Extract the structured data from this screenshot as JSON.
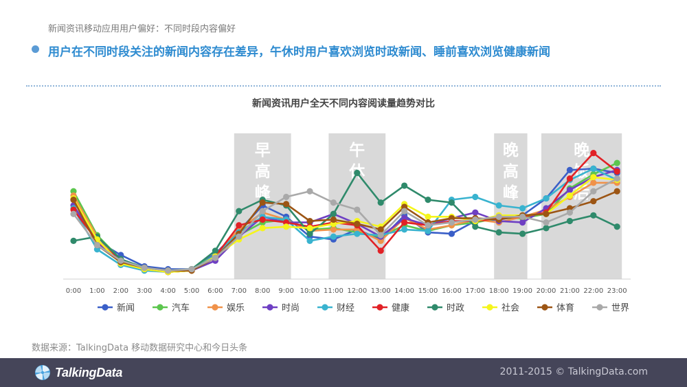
{
  "header": {
    "subtitle": "新闻资讯移动应用用户偏好：不同时段内容偏好",
    "headline": "用户在不同时段关注的新闻内容存在差异，午休时用户喜欢浏览时政新闻、睡前喜欢浏览健康新闻"
  },
  "source": "数据来源：TalkingData 移动数据研究中心和今日头条",
  "footer": {
    "logo_text": "TalkingData",
    "copyright": "2011-2015 © TalkingData.com"
  },
  "colors": {
    "accent": "#2e8bd0",
    "band": "#d9d9d9",
    "footer_bg": "#454559"
  },
  "chart_data": {
    "type": "line",
    "title": "新闻资讯用户全天不同内容阅读量趋势对比",
    "xlabel": "",
    "ylabel": "",
    "ylim": [
      0,
      100
    ],
    "grid": false,
    "legend": "bottom",
    "categories": [
      "0:00",
      "1:00",
      "2:00",
      "3:00",
      "4:00",
      "5:00",
      "6:00",
      "7:00",
      "8:00",
      "9:00",
      "10:00",
      "11:00",
      "12:00",
      "13:00",
      "14:00",
      "15:00",
      "16:00",
      "17:00",
      "18:00",
      "19:00",
      "20:00",
      "21:00",
      "22:00",
      "23:00"
    ],
    "bands": [
      {
        "label": "早高峰",
        "from": 7,
        "to": 9
      },
      {
        "label": "午休",
        "from": 11,
        "to": 13
      },
      {
        "label": "晚高峰",
        "from": 18,
        "to": 19
      },
      {
        "label": "晚饭后",
        "from": 20,
        "to": 23
      }
    ],
    "series": [
      {
        "name": "新闻",
        "color": "#3a5fc8",
        "values": [
          56,
          27,
          17,
          9,
          7,
          7,
          18,
          34,
          52,
          44,
          30,
          28,
          35,
          28,
          45,
          33,
          32,
          41,
          42,
          45,
          57,
          77,
          78,
          75
        ]
      },
      {
        "name": "汽车",
        "color": "#5cc64e",
        "values": [
          62,
          31,
          14,
          8,
          6,
          7,
          17,
          31,
          40,
          42,
          35,
          36,
          33,
          30,
          38,
          34,
          38,
          40,
          43,
          43,
          46,
          64,
          74,
          82
        ]
      },
      {
        "name": "娱乐",
        "color": "#f0924a",
        "values": [
          59,
          30,
          13,
          8,
          5,
          6,
          17,
          35,
          47,
          42,
          34,
          35,
          35,
          27,
          43,
          35,
          38,
          42,
          40,
          44,
          49,
          58,
          68,
          68
        ]
      },
      {
        "name": "时尚",
        "color": "#6e3fc3",
        "values": [
          52,
          26,
          12,
          7,
          5,
          6,
          13,
          30,
          44,
          40,
          40,
          46,
          39,
          30,
          43,
          38,
          43,
          47,
          41,
          40,
          50,
          63,
          72,
          77
        ]
      },
      {
        "name": "财经",
        "color": "#39b3cf",
        "values": [
          50,
          21,
          10,
          6,
          5,
          6,
          17,
          33,
          44,
          42,
          27,
          30,
          32,
          31,
          35,
          34,
          56,
          58,
          52,
          50,
          57,
          70,
          78,
          70
        ]
      },
      {
        "name": "健康",
        "color": "#e12126",
        "values": [
          49,
          27,
          13,
          7,
          5,
          6,
          16,
          38,
          42,
          40,
          37,
          40,
          38,
          20,
          40,
          38,
          41,
          41,
          43,
          44,
          47,
          71,
          89,
          76
        ]
      },
      {
        "name": "时政",
        "color": "#2f8a6b",
        "values": [
          27,
          30,
          14,
          8,
          6,
          7,
          20,
          48,
          56,
          52,
          32,
          46,
          75,
          54,
          66,
          56,
          54,
          37,
          33,
          32,
          36,
          41,
          45,
          37
        ]
      },
      {
        "name": "社会",
        "color": "#f5f51c",
        "values": [
          57,
          28,
          11,
          7,
          5,
          6,
          16,
          28,
          36,
          37,
          36,
          39,
          41,
          37,
          53,
          44,
          44,
          41,
          45,
          45,
          46,
          59,
          72,
          70
        ]
      },
      {
        "name": "体育",
        "color": "#9c5514",
        "values": [
          56,
          24,
          12,
          8,
          6,
          6,
          15,
          32,
          54,
          53,
          41,
          42,
          39,
          35,
          51,
          40,
          43,
          43,
          42,
          45,
          46,
          50,
          55,
          62
        ]
      },
      {
        "name": "世界",
        "color": "#a9a9a9",
        "values": [
          46,
          24,
          13,
          8,
          6,
          7,
          15,
          30,
          48,
          58,
          62,
          54,
          49,
          31,
          48,
          38,
          40,
          42,
          44,
          44,
          40,
          47,
          62,
          71
        ]
      }
    ]
  }
}
